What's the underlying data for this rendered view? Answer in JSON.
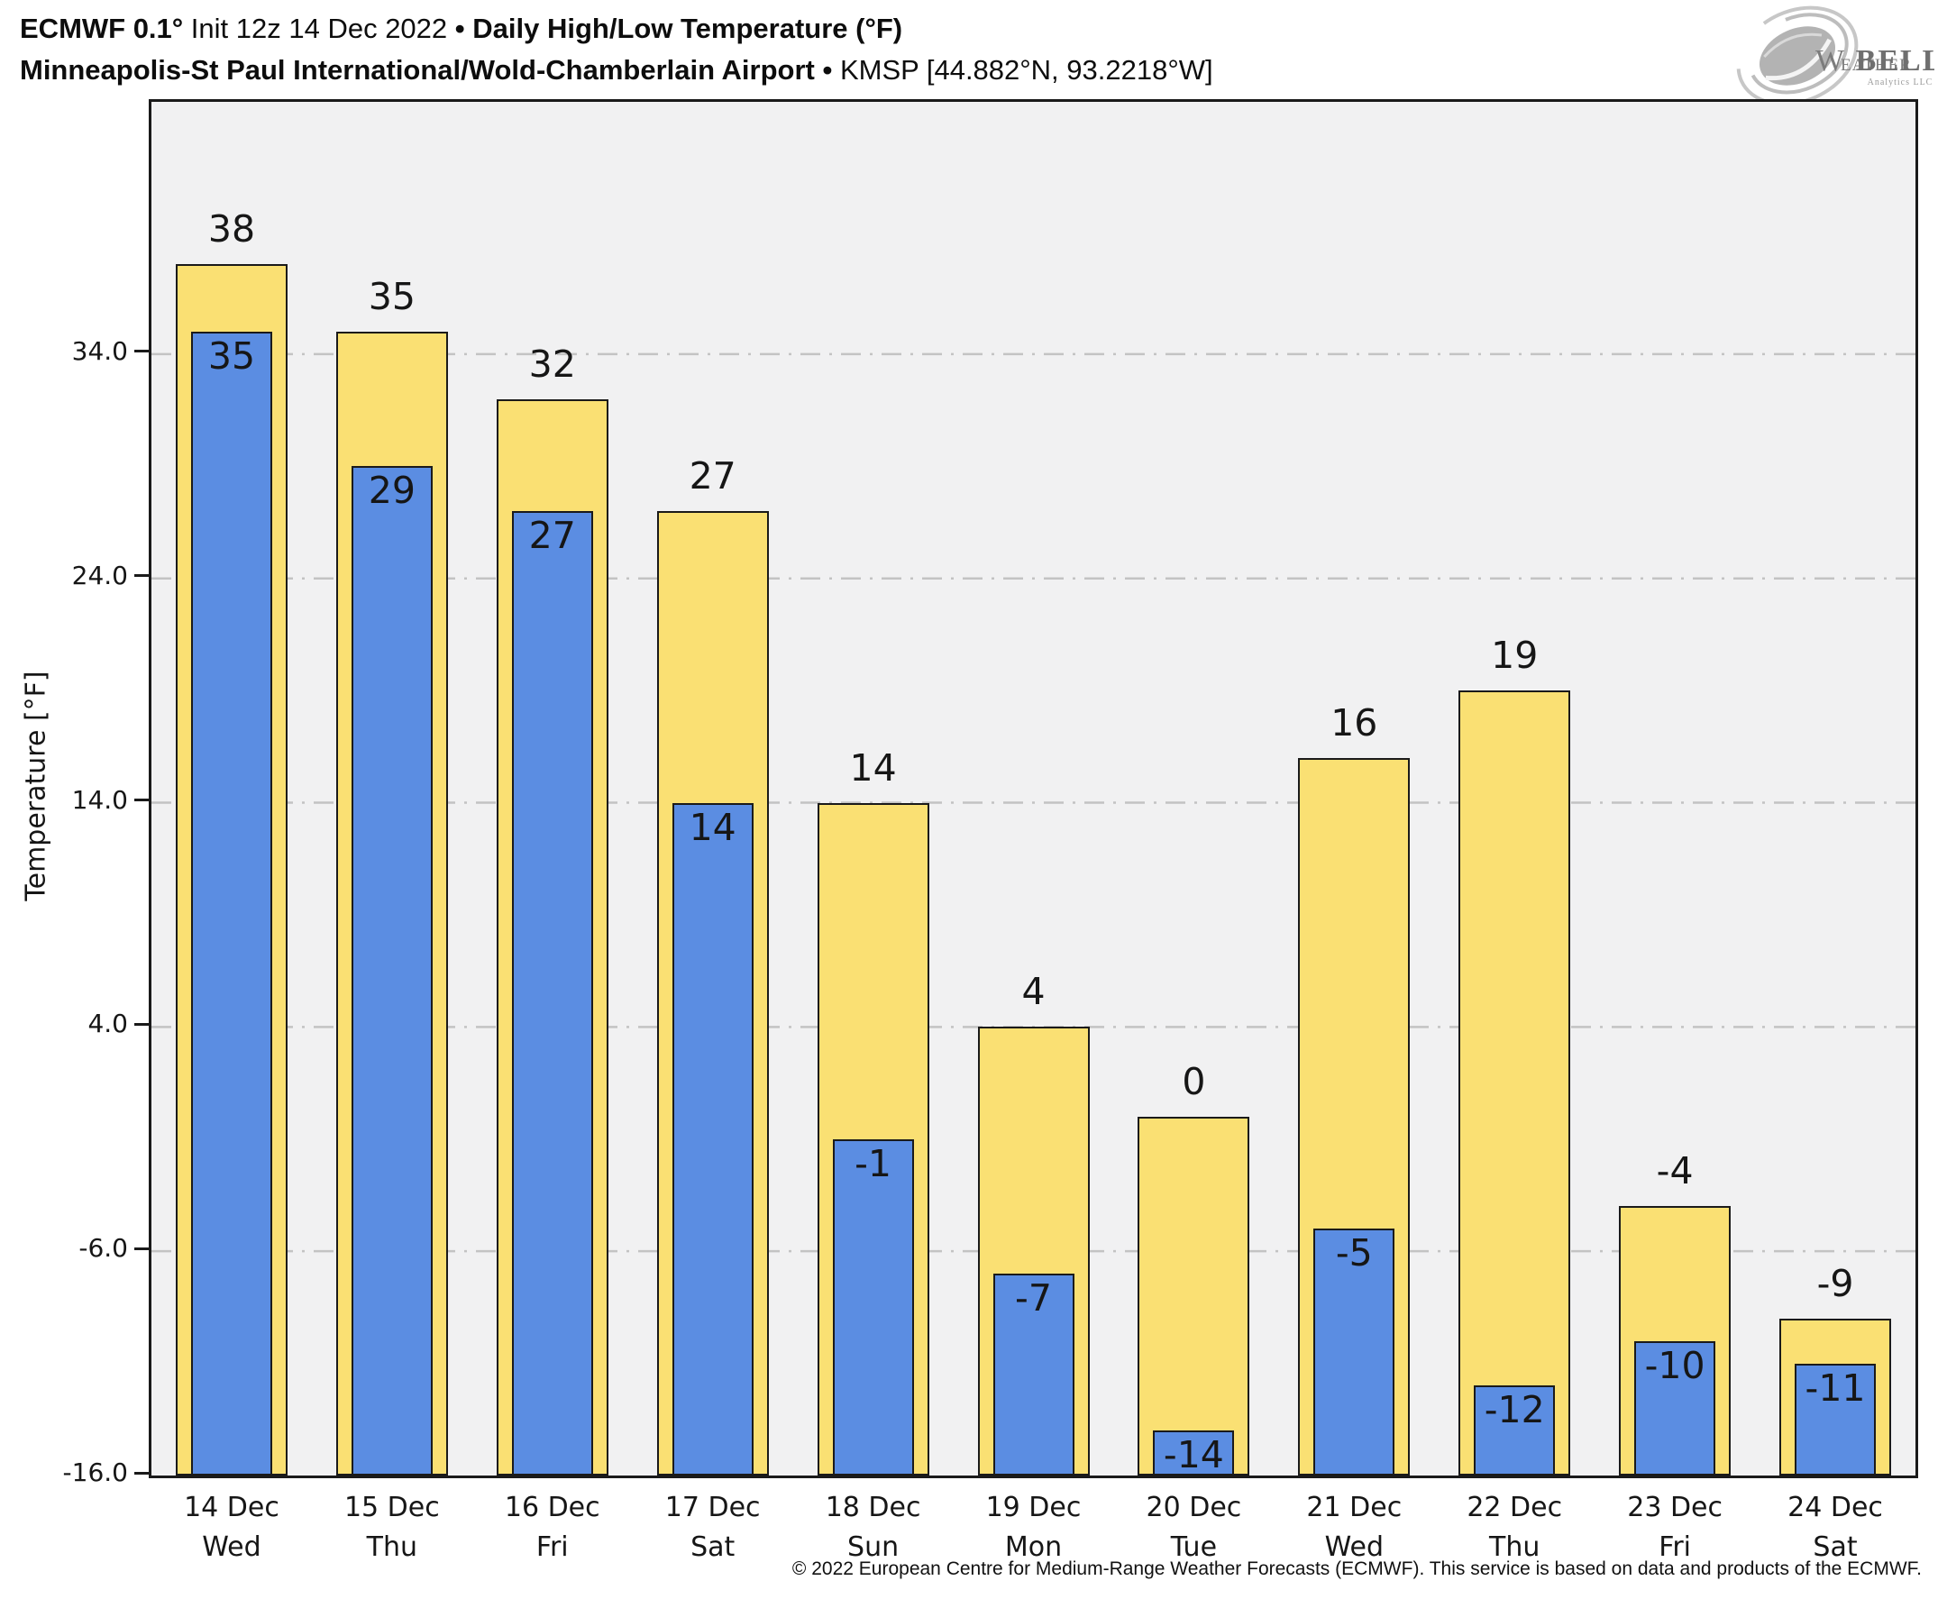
{
  "header": {
    "title": {
      "model": "ECMWF 0.1°",
      "init": " Init 12z 14 Dec 2022 ",
      "sep": "•",
      "product": " Daily High/Low Temperature (°F)"
    },
    "subtitle": {
      "station": "Minneapolis-St Paul International/Wold-Chamberlain Airport",
      "sep": " • ",
      "station_id": "KMSP [44.882°N, 93.2218°W]"
    }
  },
  "logo": {
    "word_w": "W",
    "word_eather": "EATHER",
    "word_bell": "BELL",
    "tagline": "Analytics LLC"
  },
  "chart_data": {
    "type": "bar",
    "title": "ECMWF 0.1° Init 12z 14 Dec 2022 • Daily High/Low Temperature (°F)",
    "subtitle": "Minneapolis-St Paul International/Wold-Chamberlain Airport • KMSP [44.882°N, 93.2218°W]",
    "xlabel": "",
    "ylabel": "Temperature [°F]",
    "ylim": [
      -16,
      45.25
    ],
    "baseline": -16,
    "grid": {
      "orientation": "horizontal",
      "style": "dash-dot",
      "color": "#c3c3c3"
    },
    "legend": "none",
    "yticks": [
      {
        "value": 34,
        "label": "34.0"
      },
      {
        "value": 24,
        "label": "24.0"
      },
      {
        "value": 14,
        "label": "14.0"
      },
      {
        "value": 4,
        "label": "4.0"
      },
      {
        "value": -6,
        "label": "-6.0"
      },
      {
        "value": -16,
        "label": "-16.0"
      }
    ],
    "categories": [
      {
        "date": "14 Dec",
        "day": "Wed"
      },
      {
        "date": "15 Dec",
        "day": "Thu"
      },
      {
        "date": "16 Dec",
        "day": "Fri"
      },
      {
        "date": "17 Dec",
        "day": "Sat"
      },
      {
        "date": "18 Dec",
        "day": "Sun"
      },
      {
        "date": "19 Dec",
        "day": "Mon"
      },
      {
        "date": "20 Dec",
        "day": "Tue"
      },
      {
        "date": "21 Dec",
        "day": "Wed"
      },
      {
        "date": "22 Dec",
        "day": "Thu"
      },
      {
        "date": "23 Dec",
        "day": "Fri"
      },
      {
        "date": "24 Dec",
        "day": "Sat"
      }
    ],
    "series": [
      {
        "name": "Daily High",
        "color": "#fae073",
        "values": [
          38,
          35,
          32,
          27,
          14,
          4,
          0,
          16,
          19,
          -4,
          -9
        ]
      },
      {
        "name": "Daily Low",
        "color": "#5b8de2",
        "values": [
          35,
          29,
          27,
          14,
          -1,
          -7,
          -14,
          -5,
          -12,
          -10,
          -11
        ]
      }
    ]
  },
  "footer": {
    "copyright": "© 2022 European Centre for Medium-Range Weather Forecasts (ECMWF). This service is based on data and products of the ECMWF."
  },
  "colors": {
    "high": "#fae073",
    "low": "#5b8de2",
    "plot_bg": "#f1f1f2",
    "frame": "#1a1a1a",
    "grid": "#c3c3c3",
    "text": "#161616"
  }
}
